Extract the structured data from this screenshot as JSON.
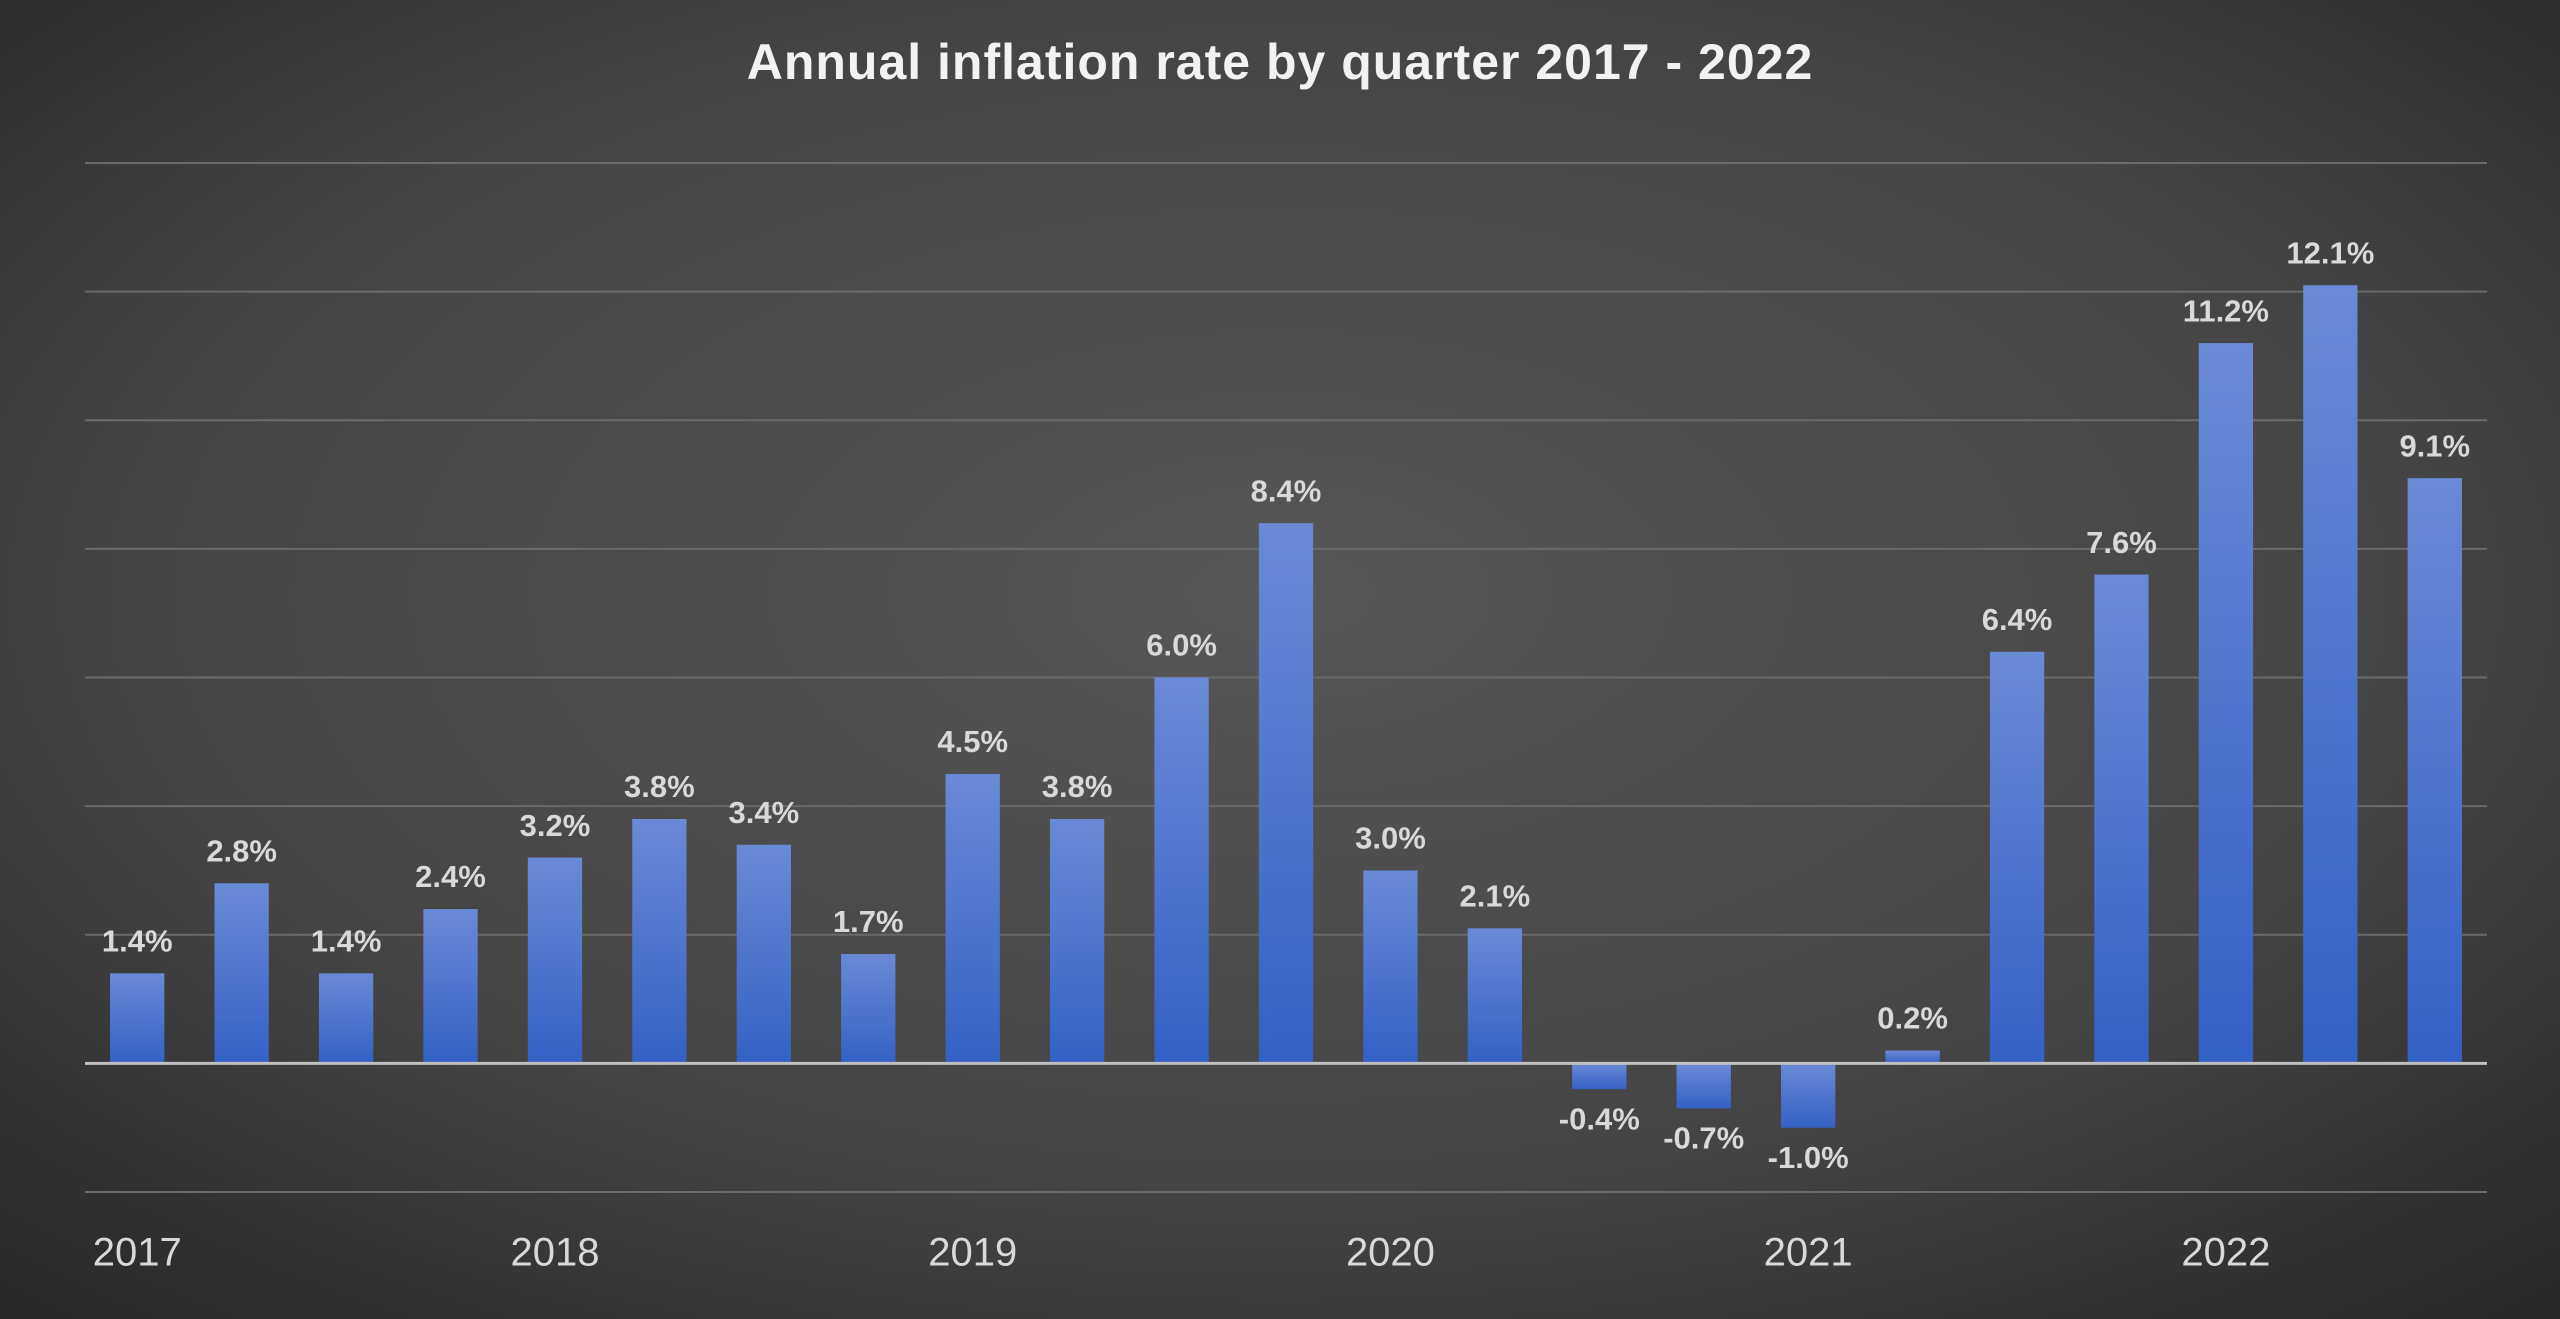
{
  "chart_data": {
    "type": "bar",
    "title": "Annual inflation rate by quarter 2017 - 2022",
    "categories": [
      "2017",
      null,
      null,
      null,
      "2018",
      null,
      null,
      null,
      "2019",
      null,
      null,
      null,
      "2020",
      null,
      null,
      null,
      "2021",
      null,
      null,
      null,
      "2022",
      null,
      null
    ],
    "values": [
      1.4,
      2.8,
      1.4,
      2.4,
      3.2,
      3.8,
      3.4,
      1.7,
      4.5,
      3.8,
      6.0,
      8.4,
      3.0,
      2.1,
      -0.4,
      -0.7,
      -1.0,
      0.2,
      6.4,
      7.6,
      11.2,
      12.1,
      9.1
    ],
    "value_labels": [
      "1.4%",
      "2.8%",
      "1.4%",
      "2.4%",
      "3.2%",
      "3.8%",
      "3.4%",
      "1.7%",
      "4.5%",
      "3.8%",
      "6.0%",
      "8.4%",
      "3.0%",
      "2.1%",
      "-0.4%",
      "-0.7%",
      "-1.0%",
      "0.2%",
      "6.4%",
      "7.6%",
      "11.2%",
      "12.1%",
      "9.1%"
    ],
    "color": "#4a72d0",
    "ylim": [
      -2,
      14
    ],
    "yticks": [
      -2,
      0,
      2,
      4,
      6,
      8,
      10,
      12,
      14
    ],
    "grid": true
  }
}
